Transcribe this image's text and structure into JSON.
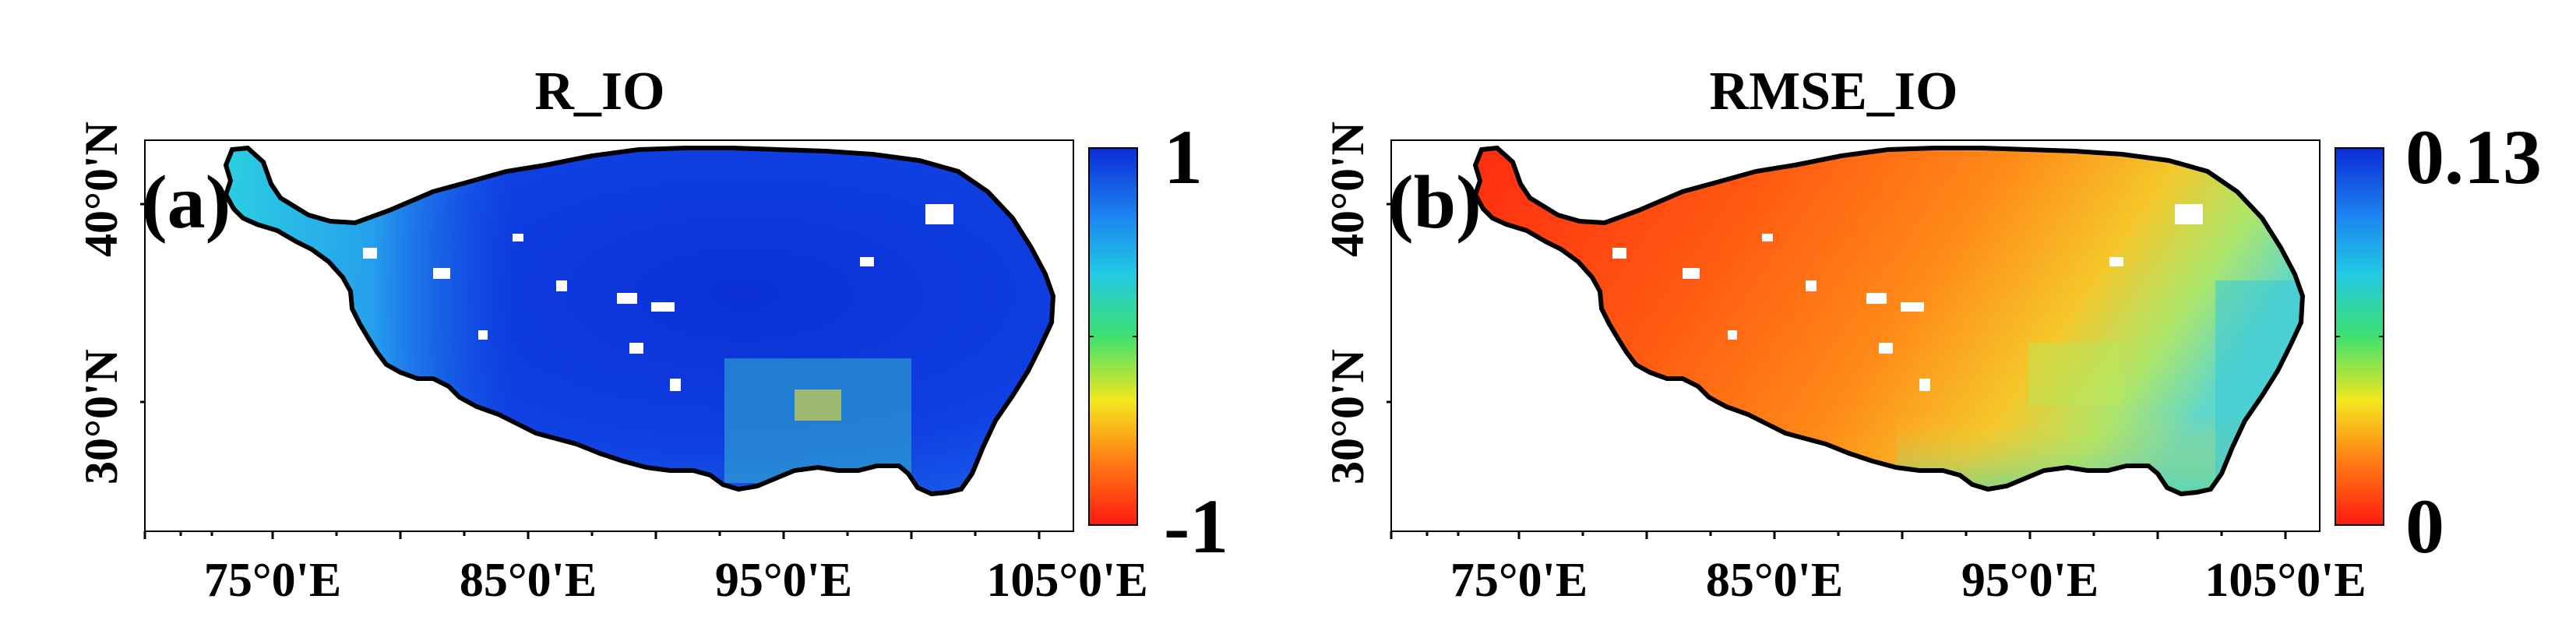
{
  "figure": {
    "panels": [
      {
        "id": "a",
        "label": "(a)",
        "title": "R_IO",
        "colorbar": {
          "max_label": "1",
          "min_label": "-1",
          "min": -1,
          "max": 1,
          "colors_top_to_bottom": [
            "#0a2cd8",
            "#1b7fef",
            "#20c9e6",
            "#3ee06f",
            "#f2e81e",
            "#ff7d14",
            "#ff1a10"
          ]
        },
        "map_character": "mostly high correlation (blue), lighter cyan/green in far west and south-east edges"
      },
      {
        "id": "b",
        "label": "(b)",
        "title": "RMSE_IO",
        "colorbar": {
          "max_label": "0.13",
          "min_label": "0",
          "min": 0,
          "max": 0.13,
          "colors_top_to_bottom": [
            "#0a2cd8",
            "#1b7fef",
            "#20c9e6",
            "#3ee06f",
            "#f2e81e",
            "#ff7d14",
            "#ff1a10"
          ]
        },
        "map_character": "mostly low error (red/orange) in west, yellow/green/cyan toward east and south-east"
      }
    ],
    "latitude_labels": [
      "40°0'N",
      "30°0'N"
    ],
    "longitude_labels": [
      "75°0'E",
      "85°0'E",
      "95°0'E",
      "105°0'E"
    ]
  }
}
